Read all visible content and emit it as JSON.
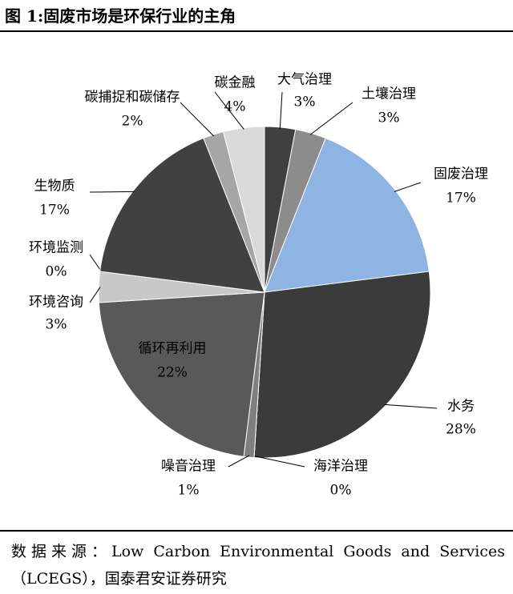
{
  "chart_data": {
    "type": "pie",
    "title": "图 1:固废市场是环保行业的主角",
    "categories": [
      "大气治理",
      "土壤治理",
      "固废治理",
      "水务",
      "海洋治理",
      "噪音治理",
      "循环再利用",
      "环境咨询",
      "环境监测",
      "生物质",
      "碳捕捉和碳储存",
      "碳金融"
    ],
    "values": [
      3,
      3,
      17,
      28,
      0,
      1,
      22,
      3,
      0,
      17,
      2,
      4
    ],
    "value_labels": [
      "3%",
      "3%",
      "17%",
      "28%",
      "0%",
      "1%",
      "22%",
      "3%",
      "0%",
      "17%",
      "2%",
      "4%"
    ],
    "colors": [
      "#404040",
      "#8c8c8c",
      "#8eb4e3",
      "#3b3b3b",
      "#bfbfbf",
      "#7f7f7f",
      "#595959",
      "#c8c8c8",
      "#2e2e2e",
      "#414141",
      "#a6a6a6",
      "#d9d9d9"
    ],
    "source": "数据来源：Low Carbon Environmental Goods and Services（LCEGS），国泰君安证券研究"
  }
}
